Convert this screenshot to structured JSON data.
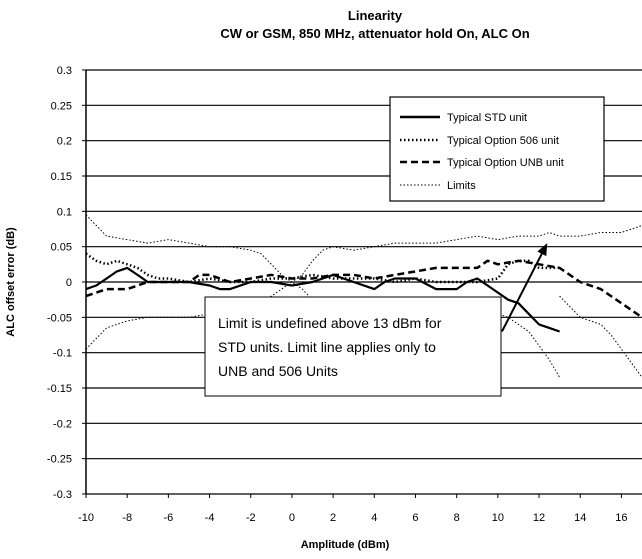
{
  "chart_data": {
    "type": "line",
    "title": "Linearity",
    "subtitle": "CW or GSM, 850 MHz, attenuator hold On, ALC On",
    "xlabel": "Amplitude (dBm)",
    "ylabel": "ALC offset error (dB)",
    "xlim": [
      -10,
      17
    ],
    "ylim": [
      -0.3,
      0.3
    ],
    "xticks": [
      "-10",
      "-8",
      "-6",
      "-4",
      "-2",
      "0",
      "2",
      "4",
      "6",
      "8",
      "10",
      "12",
      "14",
      "16"
    ],
    "yticks": [
      "0.3",
      "0.25",
      "0.2",
      "0.15",
      "0.1",
      "0.05",
      "0",
      "-0.05",
      "-0.1",
      "-0.15",
      "-0.2",
      "-0.25",
      "-0.3"
    ],
    "grid": "horizontal",
    "legend_position": "top-right",
    "series": [
      {
        "name": "Typical STD unit",
        "style": "solid",
        "color": "#000000",
        "points": [
          [
            -10,
            -0.01
          ],
          [
            -9.5,
            -0.005
          ],
          [
            -9,
            0.005
          ],
          [
            -8.5,
            0.015
          ],
          [
            -8,
            0.02
          ],
          [
            -7.5,
            0.01
          ],
          [
            -7,
            0.0
          ],
          [
            -6,
            0.0
          ],
          [
            -5,
            0.0
          ],
          [
            -4,
            -0.005
          ],
          [
            -3.5,
            -0.01
          ],
          [
            -3,
            -0.01
          ],
          [
            -2,
            0.0
          ],
          [
            -1,
            0.0
          ],
          [
            0,
            -0.005
          ],
          [
            1,
            0.0
          ],
          [
            2,
            0.01
          ],
          [
            3,
            0.0
          ],
          [
            4,
            -0.01
          ],
          [
            4.5,
            0.0
          ],
          [
            5,
            0.005
          ],
          [
            6,
            0.005
          ],
          [
            7,
            -0.01
          ],
          [
            8,
            -0.01
          ],
          [
            8.5,
            0.0
          ],
          [
            9,
            0.005
          ],
          [
            9.5,
            -0.005
          ],
          [
            10,
            -0.015
          ],
          [
            10.5,
            -0.025
          ],
          [
            11,
            -0.03
          ],
          [
            11.5,
            -0.045
          ],
          [
            12,
            -0.06
          ],
          [
            12.5,
            -0.065
          ],
          [
            13,
            -0.07
          ]
        ]
      },
      {
        "name": "Typical Option 506 unit",
        "style": "dotted",
        "color": "#000000",
        "points": [
          [
            -10,
            0.04
          ],
          [
            -9.5,
            0.03
          ],
          [
            -9,
            0.025
          ],
          [
            -8.5,
            0.03
          ],
          [
            -8,
            0.025
          ],
          [
            -7.5,
            0.02
          ],
          [
            -7,
            0.01
          ],
          [
            -6.5,
            0.005
          ],
          [
            -6,
            0.005
          ],
          [
            -5,
            0.0
          ],
          [
            -4,
            0.005
          ],
          [
            -3,
            0.0
          ],
          [
            -2,
            0.0
          ],
          [
            -1,
            0.005
          ],
          [
            0,
            0.005
          ],
          [
            1,
            0.01
          ],
          [
            2,
            0.005
          ],
          [
            3,
            0.005
          ],
          [
            4,
            0.005
          ],
          [
            5,
            0.0
          ],
          [
            6,
            0.005
          ],
          [
            7,
            0.0
          ],
          [
            8,
            0.0
          ],
          [
            9,
            0.0
          ],
          [
            10,
            0.005
          ],
          [
            10.5,
            0.025
          ],
          [
            11,
            0.03
          ],
          [
            11.5,
            0.03
          ],
          [
            12,
            0.02
          ],
          [
            12.5,
            0.02
          ],
          [
            13,
            0.02
          ]
        ]
      },
      {
        "name": "Typical Option UNB unit",
        "style": "dashed",
        "color": "#000000",
        "points": [
          [
            -10,
            -0.02
          ],
          [
            -9,
            -0.01
          ],
          [
            -8,
            -0.01
          ],
          [
            -7,
            0.0
          ],
          [
            -6,
            0.0
          ],
          [
            -5,
            0.0
          ],
          [
            -4.5,
            0.01
          ],
          [
            -4,
            0.01
          ],
          [
            -3,
            0.0
          ],
          [
            -2,
            0.005
          ],
          [
            -1,
            0.01
          ],
          [
            0,
            0.005
          ],
          [
            1,
            0.005
          ],
          [
            2,
            0.01
          ],
          [
            3,
            0.01
          ],
          [
            4,
            0.005
          ],
          [
            5,
            0.01
          ],
          [
            6,
            0.015
          ],
          [
            7,
            0.02
          ],
          [
            8,
            0.02
          ],
          [
            9,
            0.02
          ],
          [
            9.5,
            0.03
          ],
          [
            10,
            0.025
          ],
          [
            11,
            0.03
          ],
          [
            12,
            0.025
          ],
          [
            13,
            0.02
          ],
          [
            14,
            0.0
          ],
          [
            15,
            -0.01
          ],
          [
            16,
            -0.03
          ],
          [
            17,
            -0.05
          ]
        ]
      },
      {
        "name": "Limits",
        "style": "thin-dotted",
        "color": "#000000",
        "segments": [
          [
            [
              -10,
              0.095
            ],
            [
              -9.5,
              0.08
            ],
            [
              -9,
              0.065
            ],
            [
              -8,
              0.06
            ],
            [
              -7,
              0.055
            ],
            [
              -6,
              0.06
            ],
            [
              -5,
              0.055
            ],
            [
              -4,
              0.05
            ],
            [
              -3,
              0.05
            ],
            [
              -2,
              0.045
            ],
            [
              -1.5,
              0.04
            ],
            [
              -1,
              0.025
            ],
            [
              -0.5,
              0.01
            ],
            [
              0,
              0.0
            ],
            [
              0.5,
              0.01
            ],
            [
              1,
              0.03
            ],
            [
              1.5,
              0.045
            ],
            [
              2,
              0.05
            ],
            [
              3,
              0.045
            ],
            [
              4,
              0.05
            ],
            [
              5,
              0.055
            ],
            [
              6,
              0.055
            ],
            [
              7,
              0.055
            ],
            [
              8,
              0.06
            ],
            [
              9,
              0.065
            ],
            [
              10,
              0.06
            ],
            [
              11,
              0.065
            ],
            [
              12,
              0.065
            ],
            [
              12.5,
              0.07
            ],
            [
              13,
              0.065
            ],
            [
              14,
              0.065
            ],
            [
              15,
              0.07
            ],
            [
              16,
              0.07
            ],
            [
              17,
              0.08
            ]
          ],
          [
            [
              -10,
              -0.095
            ],
            [
              -9.5,
              -0.08
            ],
            [
              -9,
              -0.065
            ],
            [
              -8,
              -0.055
            ],
            [
              -7,
              -0.05
            ],
            [
              -6,
              -0.05
            ],
            [
              -5,
              -0.05
            ],
            [
              -4,
              -0.045
            ],
            [
              -3,
              -0.045
            ],
            [
              -2,
              -0.04
            ],
            [
              -1.5,
              -0.03
            ],
            [
              -1,
              -0.02
            ],
            [
              -0.5,
              -0.01
            ],
            [
              0,
              0.0
            ],
            [
              0.5,
              -0.01
            ],
            [
              1,
              -0.025
            ],
            [
              1.5,
              -0.04
            ],
            [
              2,
              -0.035
            ],
            [
              3,
              -0.035
            ],
            [
              4,
              -0.035
            ],
            [
              5,
              -0.03
            ],
            [
              6,
              -0.03
            ],
            [
              7,
              -0.025
            ],
            [
              8,
              -0.025
            ],
            [
              9,
              -0.035
            ],
            [
              10,
              -0.045
            ],
            [
              10.5,
              -0.05
            ],
            [
              11,
              -0.06
            ],
            [
              11.5,
              -0.07
            ],
            [
              12,
              -0.09
            ],
            [
              12.5,
              -0.11
            ],
            [
              13,
              -0.135
            ]
          ],
          [
            [
              13,
              -0.02
            ],
            [
              13.5,
              -0.035
            ],
            [
              14,
              -0.05
            ],
            [
              15,
              -0.06
            ],
            [
              15.5,
              -0.075
            ],
            [
              16,
              -0.095
            ],
            [
              16.5,
              -0.115
            ],
            [
              17,
              -0.135
            ]
          ]
        ]
      }
    ],
    "annotation": {
      "lines": [
        "Limit is undefined above 13 dBm for",
        "STD units. Limit line applies only to",
        "UNB and 506 Units"
      ],
      "arrow_from": [
        10.2,
        -0.07
      ],
      "arrow_to": [
        12.4,
        0.055
      ]
    }
  }
}
